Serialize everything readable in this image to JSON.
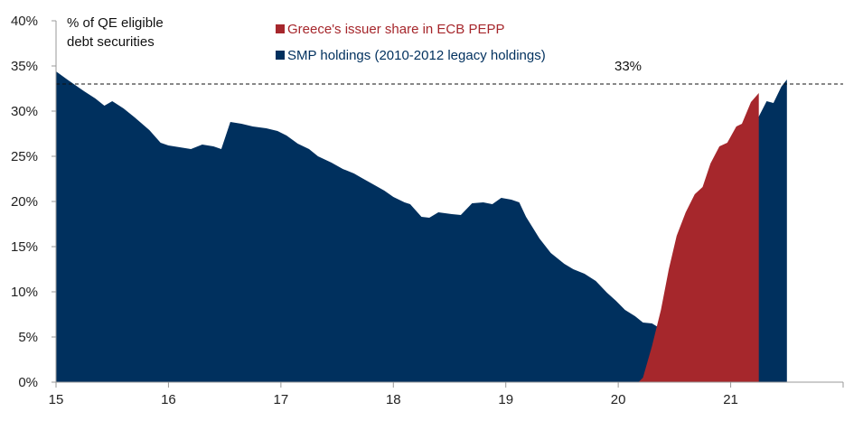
{
  "chart_data": {
    "type": "area",
    "title": "",
    "ylabel_lines": [
      "% of QE eligible",
      "debt securities"
    ],
    "xlabel": "",
    "x_range": [
      15,
      22
    ],
    "ylim": [
      0,
      40
    ],
    "y_ticks": [
      0,
      5,
      10,
      15,
      20,
      25,
      30,
      35,
      40
    ],
    "y_tick_labels": [
      "0%",
      "5%",
      "10%",
      "15%",
      "20%",
      "25%",
      "30%",
      "35%",
      "40%"
    ],
    "x_ticks": [
      15,
      16,
      17,
      18,
      19,
      20,
      21,
      22
    ],
    "x_tick_labels": [
      "15",
      "16",
      "17",
      "18",
      "19",
      "20",
      "21"
    ],
    "grid": false,
    "legend_position": "top-center",
    "stacked": true,
    "series": [
      {
        "name": "Greece's issuer share in ECB PEPP",
        "color": "#a6272c",
        "points": [
          [
            20.18,
            0
          ],
          [
            20.22,
            0.5
          ],
          [
            20.3,
            4
          ],
          [
            20.38,
            8
          ],
          [
            20.45,
            12.5
          ],
          [
            20.52,
            16.2
          ],
          [
            20.6,
            18.8
          ],
          [
            20.68,
            20.8
          ],
          [
            20.75,
            21.6
          ],
          [
            20.82,
            24.2
          ],
          [
            20.9,
            26.1
          ],
          [
            20.97,
            26.5
          ],
          [
            21.05,
            28.3
          ],
          [
            21.1,
            28.6
          ],
          [
            21.18,
            31
          ],
          [
            21.25,
            32
          ]
        ]
      },
      {
        "name": "SMP holdings (2010-2012 legacy holdings)",
        "color": "#00305e",
        "points": [
          [
            15.0,
            34.4
          ],
          [
            15.1,
            33.5
          ],
          [
            15.25,
            32.2
          ],
          [
            15.35,
            31.4
          ],
          [
            15.43,
            30.6
          ],
          [
            15.5,
            31.1
          ],
          [
            15.6,
            30.3
          ],
          [
            15.7,
            29.3
          ],
          [
            15.83,
            27.9
          ],
          [
            15.93,
            26.5
          ],
          [
            16.0,
            26.2
          ],
          [
            16.1,
            26.0
          ],
          [
            16.2,
            25.8
          ],
          [
            16.3,
            26.3
          ],
          [
            16.4,
            26.1
          ],
          [
            16.47,
            25.8
          ],
          [
            16.55,
            28.8
          ],
          [
            16.65,
            28.6
          ],
          [
            16.75,
            28.3
          ],
          [
            16.87,
            28.1
          ],
          [
            16.97,
            27.8
          ],
          [
            17.05,
            27.3
          ],
          [
            17.15,
            26.4
          ],
          [
            17.25,
            25.8
          ],
          [
            17.33,
            25.0
          ],
          [
            17.45,
            24.3
          ],
          [
            17.55,
            23.6
          ],
          [
            17.65,
            23.1
          ],
          [
            17.72,
            22.6
          ],
          [
            17.82,
            21.9
          ],
          [
            17.92,
            21.2
          ],
          [
            18.0,
            20.5
          ],
          [
            18.1,
            19.9
          ],
          [
            18.15,
            19.7
          ],
          [
            18.25,
            18.3
          ],
          [
            18.32,
            18.2
          ],
          [
            18.4,
            18.8
          ],
          [
            18.52,
            18.6
          ],
          [
            18.6,
            18.5
          ],
          [
            18.7,
            19.8
          ],
          [
            18.8,
            19.9
          ],
          [
            18.88,
            19.7
          ],
          [
            18.96,
            20.4
          ],
          [
            19.05,
            20.2
          ],
          [
            19.12,
            19.9
          ],
          [
            19.18,
            18.3
          ],
          [
            19.3,
            15.9
          ],
          [
            19.4,
            14.3
          ],
          [
            19.52,
            13.1
          ],
          [
            19.6,
            12.5
          ],
          [
            19.7,
            12.0
          ],
          [
            19.8,
            11.2
          ],
          [
            19.9,
            9.9
          ],
          [
            19.98,
            9.0
          ],
          [
            20.06,
            8.0
          ],
          [
            20.15,
            7.3
          ],
          [
            20.22,
            6.6
          ],
          [
            20.3,
            6.5
          ],
          [
            20.38,
            5.9
          ],
          [
            20.45,
            6.2
          ],
          [
            20.6,
            12.5
          ],
          [
            20.72,
            18
          ],
          [
            20.82,
            21.2
          ],
          [
            20.9,
            23.2
          ],
          [
            20.97,
            24.8
          ],
          [
            21.04,
            25.4
          ],
          [
            21.1,
            27.8
          ],
          [
            21.18,
            29.6
          ],
          [
            21.25,
            29.4
          ],
          [
            21.32,
            31.1
          ],
          [
            21.38,
            30.9
          ],
          [
            21.45,
            32.7
          ],
          [
            21.5,
            33.5
          ]
        ]
      }
    ],
    "reference_line": {
      "y": 33,
      "label": "33%",
      "style": "dashed"
    }
  }
}
